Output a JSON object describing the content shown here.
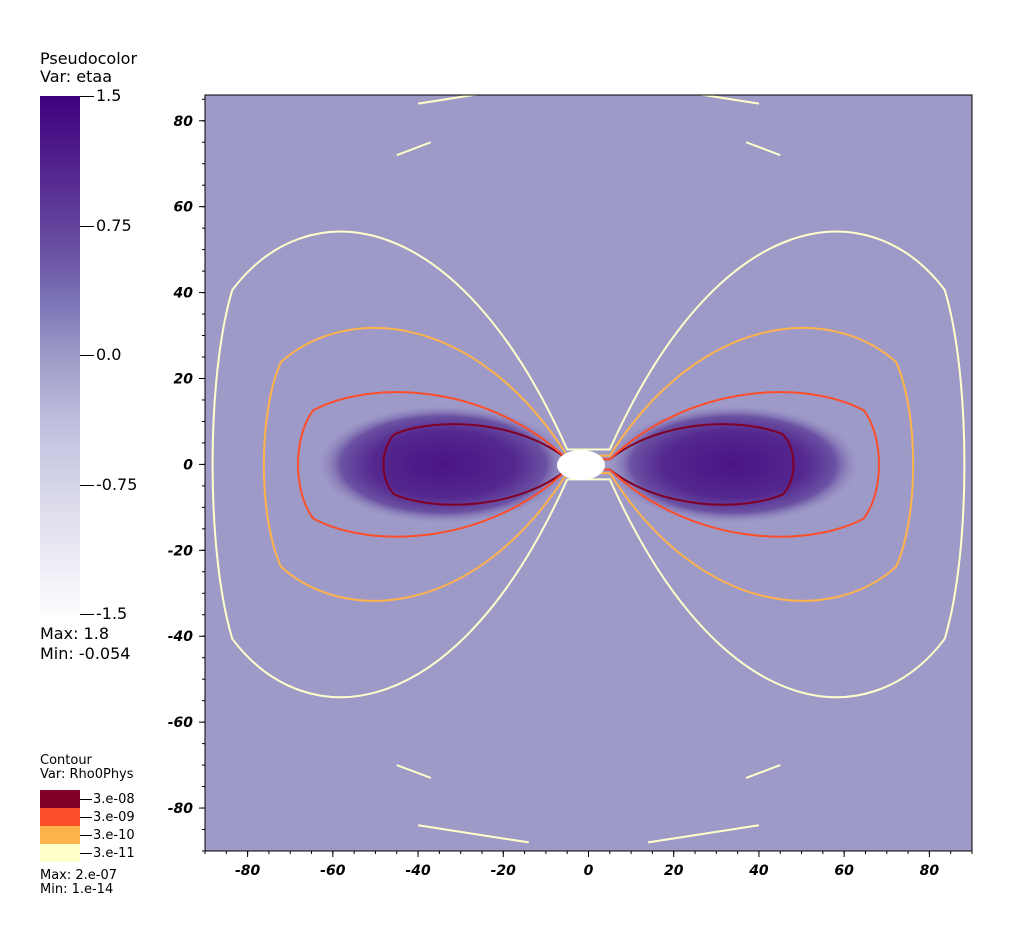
{
  "pseudocolor_legend": {
    "title": "Pseudocolor",
    "var_label": "Var: etaa",
    "ticks": [
      "1.5",
      "0.75",
      "0.0",
      "-0.75",
      "-1.5"
    ],
    "max_label": "Max:  1.8",
    "min_label": "Min: -0.054",
    "color_top": "#3f007d",
    "color_bottom": "#fcfbfd"
  },
  "contour_legend": {
    "title": "Contour",
    "var_label": "Var: Rho0Phys",
    "levels": [
      {
        "label": "3.e-08",
        "color": "#800026"
      },
      {
        "label": "3.e-09",
        "color": "#fc4e2a"
      },
      {
        "label": "3.e-10",
        "color": "#feb24c"
      },
      {
        "label": "3.e-11",
        "color": "#ffffcc"
      }
    ],
    "max_label": "Max:  2.e-07",
    "min_label": "Min:  1.e-14"
  },
  "chart_data": {
    "type": "heatmap",
    "title": "",
    "xlabel": "",
    "ylabel": "",
    "xlim": [
      -90,
      90
    ],
    "ylim": [
      -90,
      86
    ],
    "x_ticks": [
      -80,
      -60,
      -40,
      -20,
      0,
      20,
      40,
      60,
      80
    ],
    "y_ticks": [
      80,
      60,
      40,
      20,
      0,
      -20,
      -40,
      -60,
      -80
    ],
    "background_value": 0.0,
    "background_color": "#9e9ac8",
    "colorscale": {
      "min": -1.5,
      "max": 1.5,
      "data_max": 1.8,
      "data_min": -0.054
    },
    "grid": false,
    "contour_levels": [
      {
        "level": "3.e-08",
        "color": "#800026",
        "half_width": 48,
        "half_height": 10
      },
      {
        "level": "3.e-09",
        "color": "#fc4e2a",
        "half_width": 68,
        "half_height": 18
      },
      {
        "level": "3.e-10",
        "color": "#feb24c",
        "half_width": 76,
        "half_height": 34
      },
      {
        "level": "3.e-11",
        "color": "#ffffcc",
        "half_width": 88,
        "half_height": 58
      }
    ]
  }
}
